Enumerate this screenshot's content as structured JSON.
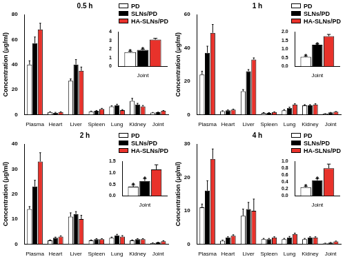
{
  "chart_data": [
    {
      "type": "bar",
      "title": "0.5 h",
      "y_label": "Concentration (μg/ml)",
      "categories": [
        "Plasma",
        "Heart",
        "Liver",
        "Spleen",
        "Lung",
        "Kidney",
        "Joint"
      ],
      "series": [
        {
          "name": "PD",
          "color": "#ffffff",
          "values": [
            40,
            2,
            27,
            2.5,
            6.5,
            11,
            1.6
          ],
          "errors": [
            3,
            0.3,
            1.5,
            0.3,
            0.5,
            2,
            0.1
          ]
        },
        {
          "name": "SLNs/PD",
          "color": "#000000",
          "values": [
            57,
            1.5,
            40,
            3,
            7.5,
            8,
            1.9
          ],
          "errors": [
            5,
            0.3,
            4,
            0.3,
            0.8,
            1,
            0.1
          ]
        },
        {
          "name": "HA-SLNs/PD",
          "color": "#e8322b",
          "values": [
            68,
            2,
            35,
            4.5,
            3.5,
            6.5,
            3.1
          ],
          "errors": [
            5,
            0.3,
            3,
            0.5,
            0.5,
            0.8,
            0.15
          ]
        }
      ],
      "ylim": [
        0,
        80
      ],
      "yticks": [
        0,
        20,
        40,
        60,
        80
      ],
      "grid": false,
      "legend": "top right",
      "inset": {
        "type": "bar",
        "categories": [
          "Joint"
        ],
        "series": [
          {
            "name": "PD",
            "color": "#ffffff",
            "values": [
              1.65
            ],
            "errors": [
              0.1
            ]
          },
          {
            "name": "SLNs/PD",
            "color": "#000000",
            "values": [
              1.9
            ],
            "errors": [
              0.1
            ]
          },
          {
            "name": "HA-SLNs/PD",
            "color": "#e8322b",
            "values": [
              3.1
            ],
            "errors": [
              0.15
            ]
          }
        ],
        "ylim": [
          0,
          4
        ],
        "yticks": [
          0,
          1,
          2,
          3,
          4
        ],
        "grid": false,
        "annotations": [
          {
            "series": "PD",
            "text": "*"
          },
          {
            "series": "SLNs/PD",
            "text": "*"
          }
        ]
      }
    },
    {
      "type": "bar",
      "title": "1 h",
      "y_label": "Concentration (μg/ml)",
      "categories": [
        "Plasma",
        "Heart",
        "Liver",
        "Spleen",
        "Lung",
        "Kidney",
        "Joint"
      ],
      "series": [
        {
          "name": "PD",
          "color": "#ffffff",
          "values": [
            24,
            2,
            14,
            1,
            2.5,
            5.5,
            0.55
          ],
          "errors": [
            2,
            0.3,
            1,
            0.2,
            0.5,
            0.5,
            0.05
          ]
        },
        {
          "name": "SLNs/PD",
          "color": "#000000",
          "values": [
            37,
            2.5,
            26,
            1,
            4,
            5.5,
            1.25
          ],
          "errors": [
            4,
            0.3,
            1,
            0.2,
            0.5,
            0.5,
            0.05
          ]
        },
        {
          "name": "HA-SLNs/PD",
          "color": "#e8322b",
          "values": [
            49,
            3,
            33,
            1.5,
            6,
            6,
            1.75
          ],
          "errors": [
            5,
            0.3,
            1,
            0.2,
            0.5,
            0.5,
            0.1
          ]
        }
      ],
      "ylim": [
        0,
        60
      ],
      "yticks": [
        0,
        20,
        40,
        60
      ],
      "grid": false,
      "legend": "top right",
      "inset": {
        "type": "bar",
        "categories": [
          "Joint"
        ],
        "series": [
          {
            "name": "PD",
            "color": "#ffffff",
            "values": [
              0.55
            ],
            "errors": [
              0.05
            ]
          },
          {
            "name": "SLNs/PD",
            "color": "#000000",
            "values": [
              1.25
            ],
            "errors": [
              0.05
            ]
          },
          {
            "name": "HA-SLNs/PD",
            "color": "#e8322b",
            "values": [
              1.75
            ],
            "errors": [
              0.1
            ]
          }
        ],
        "ylim": [
          0,
          2
        ],
        "yticks": [
          {
            "value": 0,
            "label": "0.0"
          },
          0.5,
          {
            "value": 1,
            "label": "1.0"
          },
          1.5,
          {
            "value": 2,
            "label": "2.0"
          }
        ],
        "grid": false,
        "annotations": [
          {
            "series": "PD",
            "text": "*"
          },
          {
            "series": "SLNs/PD",
            "text": "*"
          }
        ]
      }
    },
    {
      "type": "bar",
      "title": "2 h",
      "y_label": "Concentration (μg/ml)",
      "categories": [
        "Plasma",
        "Heart",
        "Liver",
        "Spleen",
        "Lung",
        "Kidney",
        "Joint"
      ],
      "series": [
        {
          "name": "PD",
          "color": "#ffffff",
          "values": [
            14,
            1.5,
            11,
            1.5,
            2.5,
            1.5,
            0.4
          ],
          "errors": [
            1,
            0.2,
            1.5,
            0.2,
            0.3,
            0.2,
            0.08
          ]
        },
        {
          "name": "SLNs/PD",
          "color": "#000000",
          "values": [
            23,
            2.5,
            12,
            2,
            3.5,
            2,
            0.65
          ],
          "errors": [
            2.5,
            0.3,
            1,
            0.2,
            0.4,
            0.2,
            0.1
          ]
        },
        {
          "name": "HA-SLNs/PD",
          "color": "#e8322b",
          "values": [
            33,
            3,
            10,
            2,
            3,
            2,
            1.15
          ],
          "errors": [
            3.5,
            0.3,
            1.5,
            0.2,
            0.4,
            0.2,
            0.2
          ]
        }
      ],
      "ylim": [
        0,
        40
      ],
      "yticks": [
        0,
        10,
        20,
        30,
        40
      ],
      "grid": false,
      "legend": "top right",
      "inset": {
        "type": "bar",
        "categories": [
          "Joint"
        ],
        "series": [
          {
            "name": "PD",
            "color": "#ffffff",
            "values": [
              0.4
            ],
            "errors": [
              0.08
            ]
          },
          {
            "name": "SLNs/PD",
            "color": "#000000",
            "values": [
              0.65
            ],
            "errors": [
              0.1
            ]
          },
          {
            "name": "HA-SLNs/PD",
            "color": "#e8322b",
            "values": [
              1.15
            ],
            "errors": [
              0.2
            ]
          }
        ],
        "ylim": [
          0,
          1.5
        ],
        "yticks": [
          {
            "value": 0,
            "label": "0.0"
          },
          0.5,
          {
            "value": 1,
            "label": "1.0"
          },
          1.5
        ],
        "grid": false,
        "annotations": [
          {
            "series": "PD",
            "text": "*"
          },
          {
            "series": "SLNs/PD",
            "text": "*"
          }
        ]
      }
    },
    {
      "type": "bar",
      "title": "4 h",
      "y_label": "Concentration (μg/ml)",
      "categories": [
        "Plasma",
        "Heart",
        "Liver",
        "Spleen",
        "Lung",
        "Kidney",
        "Joint"
      ],
      "series": [
        {
          "name": "PD",
          "color": "#ffffff",
          "values": [
            11,
            1,
            8.5,
            1.5,
            1.5,
            1.5,
            0.25
          ],
          "errors": [
            1,
            0.2,
            2,
            0.2,
            0.2,
            0.2,
            0.03
          ]
        },
        {
          "name": "SLNs/PD",
          "color": "#000000",
          "values": [
            16,
            2,
            10.5,
            1.5,
            2,
            2,
            0.45
          ],
          "errors": [
            3,
            0.2,
            2,
            0.2,
            0.3,
            0.2,
            0.05
          ]
        },
        {
          "name": "HA-SLNs/PD",
          "color": "#e8322b",
          "values": [
            25.5,
            2.5,
            10,
            2,
            3,
            2,
            0.8
          ],
          "errors": [
            3,
            0.3,
            3.5,
            0.2,
            0.3,
            0.2,
            0.12
          ]
        }
      ],
      "ylim": [
        0,
        30
      ],
      "yticks": [
        0,
        10,
        20,
        30
      ],
      "grid": false,
      "legend": "top right",
      "inset": {
        "type": "bar",
        "categories": [
          "Joint"
        ],
        "series": [
          {
            "name": "PD",
            "color": "#ffffff",
            "values": [
              0.25
            ],
            "errors": [
              0.03
            ]
          },
          {
            "name": "SLNs/PD",
            "color": "#000000",
            "values": [
              0.45
            ],
            "errors": [
              0.05
            ]
          },
          {
            "name": "HA-SLNs/PD",
            "color": "#e8322b",
            "values": [
              0.8
            ],
            "errors": [
              0.12
            ]
          }
        ],
        "ylim": [
          0,
          1
        ],
        "yticks": [
          {
            "value": 0,
            "label": "0.0"
          },
          0.2,
          0.4,
          0.6,
          0.8,
          {
            "value": 1,
            "label": "1.0"
          }
        ],
        "grid": false,
        "annotations": [
          {
            "series": "PD",
            "text": "*"
          },
          {
            "series": "SLNs/PD",
            "text": "*"
          }
        ]
      }
    }
  ]
}
